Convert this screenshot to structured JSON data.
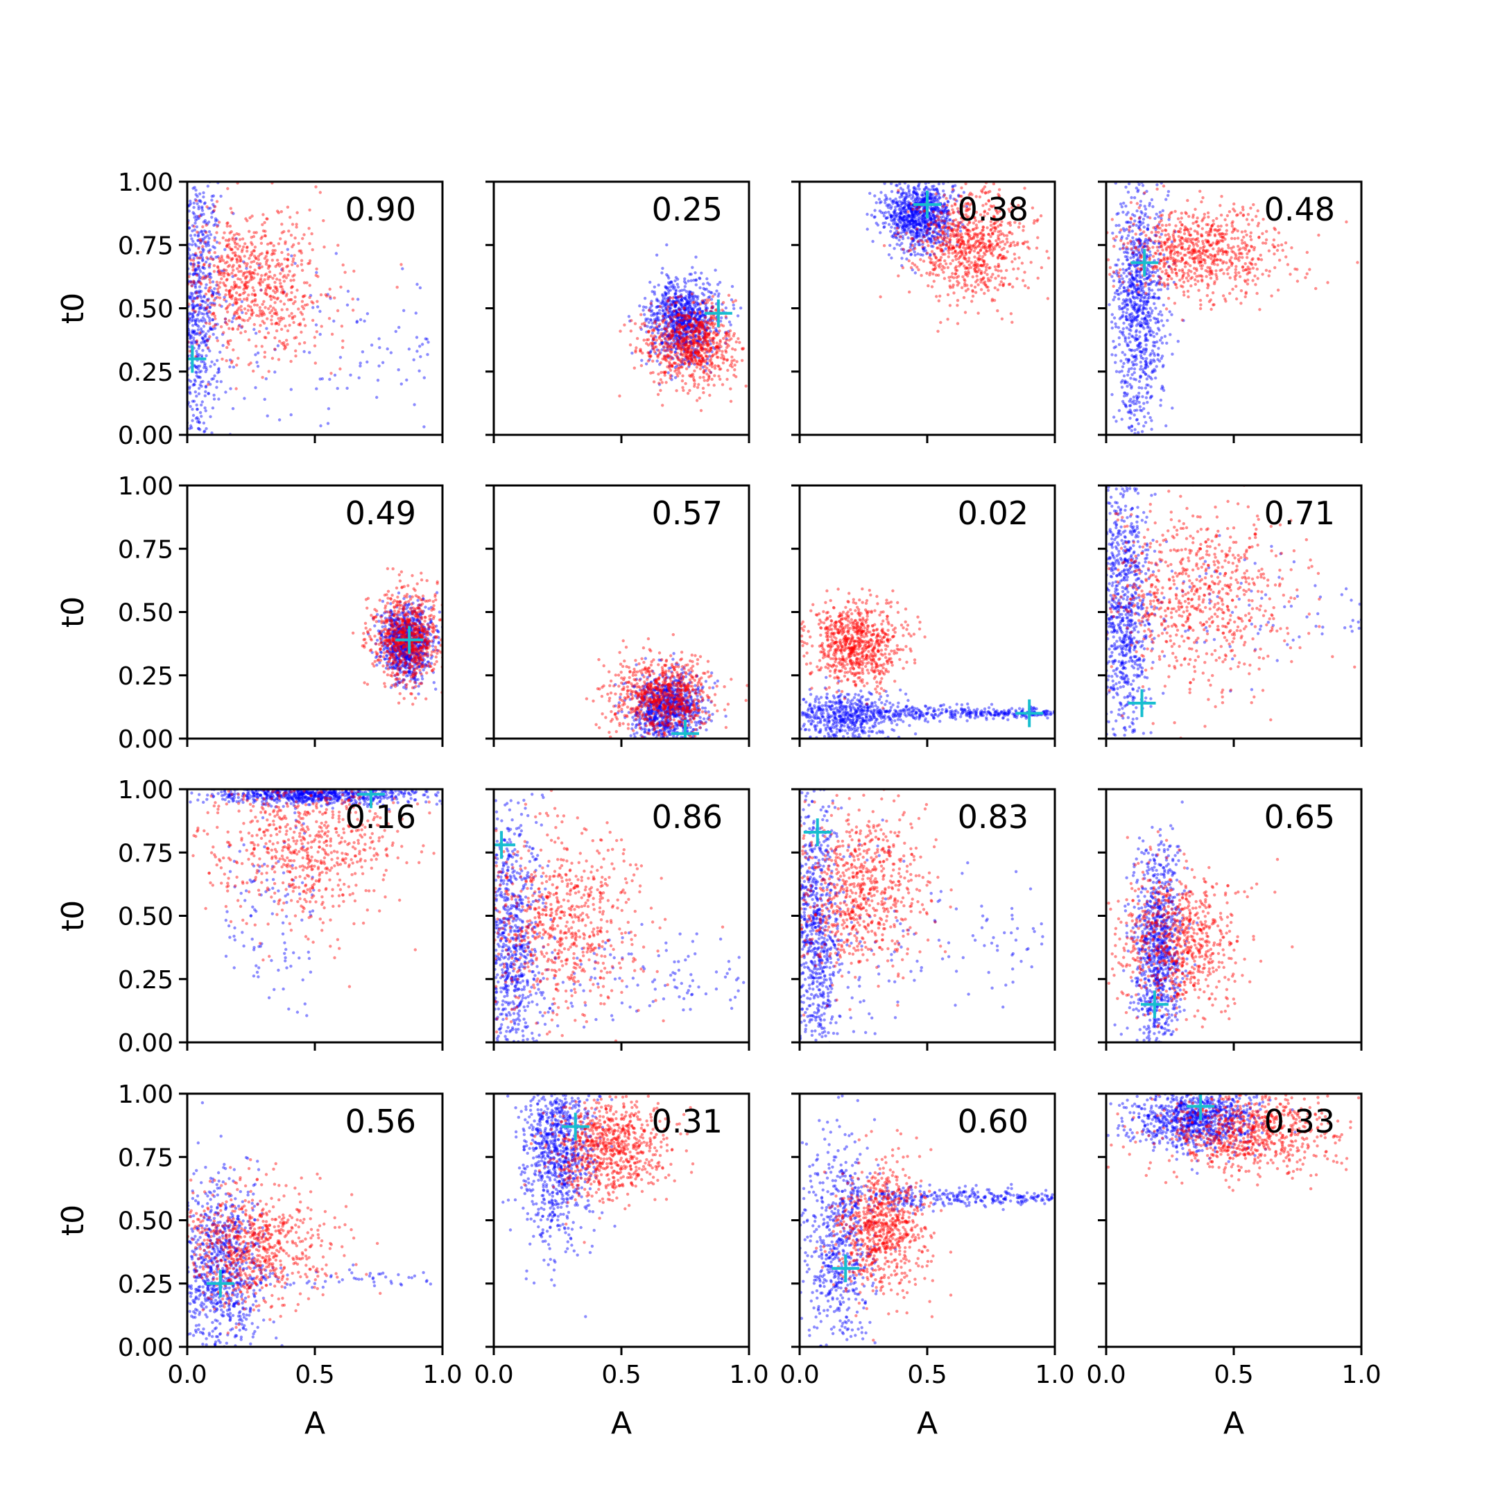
{
  "figure": {
    "xlabel": "A",
    "ylabel": "t0",
    "xlim": [
      0,
      1
    ],
    "ylim": [
      0,
      1
    ],
    "xticks": [
      "0.0",
      "0.5",
      "1.0"
    ],
    "yticks": [
      "0.00",
      "0.25",
      "0.50",
      "0.75",
      "1.00"
    ]
  },
  "colors": {
    "blue_series": "#0000ff",
    "red_series": "#ff0000",
    "true_marker": "#17becf",
    "axes": "#000000",
    "background": "#ffffff"
  },
  "chart_data": [
    {
      "type": "scatter",
      "row": 1,
      "col": 1,
      "label": "0.90",
      "xlabel": "",
      "ylabel": "t0",
      "xlim": [
        0,
        1
      ],
      "ylim": [
        0,
        1
      ],
      "marker": {
        "x": 0.02,
        "y": 0.3
      },
      "series": [
        {
          "color": "blue",
          "center": [
            0.03,
            0.5
          ],
          "spread": [
            0.05,
            0.28
          ],
          "tail": {
            "x_end": 0.98,
            "y": 0.35,
            "spread": 0.28,
            "fraction": 0.15
          }
        },
        {
          "color": "red",
          "center": [
            0.25,
            0.6
          ],
          "spread": [
            0.15,
            0.15
          ]
        }
      ]
    },
    {
      "type": "scatter",
      "row": 1,
      "col": 2,
      "label": "0.25",
      "xlabel": "",
      "ylabel": "",
      "xlim": [
        0,
        1
      ],
      "ylim": [
        0,
        1
      ],
      "marker": {
        "x": 0.88,
        "y": 0.48
      },
      "series": [
        {
          "color": "blue",
          "center": [
            0.74,
            0.45
          ],
          "spread": [
            0.07,
            0.08
          ]
        },
        {
          "color": "red",
          "center": [
            0.77,
            0.36
          ],
          "spread": [
            0.09,
            0.08
          ]
        }
      ]
    },
    {
      "type": "scatter",
      "row": 1,
      "col": 3,
      "label": "0.38",
      "xlabel": "",
      "ylabel": "",
      "xlim": [
        0,
        1
      ],
      "ylim": [
        0,
        1
      ],
      "marker": {
        "x": 0.5,
        "y": 0.91
      },
      "series": [
        {
          "color": "blue",
          "center": [
            0.47,
            0.87
          ],
          "spread": [
            0.07,
            0.07
          ]
        },
        {
          "color": "red",
          "center": [
            0.67,
            0.75
          ],
          "spread": [
            0.11,
            0.11
          ]
        }
      ]
    },
    {
      "type": "scatter",
      "row": 1,
      "col": 4,
      "label": "0.48",
      "xlabel": "",
      "ylabel": "",
      "xlim": [
        0,
        1
      ],
      "ylim": [
        0,
        1
      ],
      "marker": {
        "x": 0.15,
        "y": 0.68
      },
      "series": [
        {
          "color": "blue",
          "center": [
            0.13,
            0.5
          ],
          "spread": [
            0.05,
            0.25
          ]
        },
        {
          "color": "red",
          "center": [
            0.38,
            0.73
          ],
          "spread": [
            0.16,
            0.09
          ]
        }
      ]
    },
    {
      "type": "scatter",
      "row": 2,
      "col": 1,
      "label": "0.49",
      "xlabel": "",
      "ylabel": "t0",
      "xlim": [
        0,
        1
      ],
      "ylim": [
        0,
        1
      ],
      "marker": {
        "x": 0.87,
        "y": 0.39
      },
      "series": [
        {
          "color": "blue",
          "center": [
            0.86,
            0.38
          ],
          "spread": [
            0.05,
            0.07
          ]
        },
        {
          "color": "red",
          "center": [
            0.86,
            0.4
          ],
          "spread": [
            0.07,
            0.09
          ]
        }
      ]
    },
    {
      "type": "scatter",
      "row": 2,
      "col": 2,
      "label": "0.57",
      "xlabel": "",
      "ylabel": "",
      "xlim": [
        0,
        1
      ],
      "ylim": [
        0,
        1
      ],
      "marker": {
        "x": 0.75,
        "y": 0.02
      },
      "series": [
        {
          "color": "blue",
          "center": [
            0.68,
            0.12
          ],
          "spread": [
            0.07,
            0.07
          ]
        },
        {
          "color": "red",
          "center": [
            0.65,
            0.16
          ],
          "spread": [
            0.1,
            0.08
          ]
        }
      ]
    },
    {
      "type": "scatter",
      "row": 2,
      "col": 3,
      "label": "0.02",
      "xlabel": "",
      "ylabel": "",
      "xlim": [
        0,
        1
      ],
      "ylim": [
        0,
        1
      ],
      "marker": {
        "x": 0.9,
        "y": 0.1
      },
      "series": [
        {
          "color": "blue",
          "center": [
            0.15,
            0.08
          ],
          "spread": [
            0.12,
            0.05
          ],
          "tail": {
            "x_end": 1.0,
            "y": 0.1,
            "spread": 0.02,
            "fraction": 0.45
          }
        },
        {
          "color": "red",
          "center": [
            0.22,
            0.37
          ],
          "spread": [
            0.09,
            0.08
          ]
        }
      ]
    },
    {
      "type": "scatter",
      "row": 2,
      "col": 4,
      "label": "0.71",
      "xlabel": "",
      "ylabel": "",
      "xlim": [
        0,
        1
      ],
      "ylim": [
        0,
        1
      ],
      "marker": {
        "x": 0.14,
        "y": 0.14
      },
      "series": [
        {
          "color": "blue",
          "center": [
            0.07,
            0.5
          ],
          "spread": [
            0.05,
            0.28
          ],
          "tail": {
            "x_end": 1.0,
            "y": 0.5,
            "spread": 0.2,
            "fraction": 0.12
          }
        },
        {
          "color": "red",
          "center": [
            0.35,
            0.55
          ],
          "spread": [
            0.2,
            0.18
          ]
        }
      ]
    },
    {
      "type": "scatter",
      "row": 3,
      "col": 1,
      "label": "0.16",
      "xlabel": "",
      "ylabel": "t0",
      "xlim": [
        0,
        1
      ],
      "ylim": [
        0,
        1
      ],
      "marker": {
        "x": 0.72,
        "y": 0.98
      },
      "series": [
        {
          "color": "blue",
          "center": [
            0.5,
            0.98
          ],
          "spread": [
            0.22,
            0.02
          ],
          "tail": {
            "x_end": 0.15,
            "y": 0.5,
            "spread": 0.3,
            "fraction": 0.12
          }
        },
        {
          "color": "red",
          "center": [
            0.45,
            0.8
          ],
          "spread": [
            0.18,
            0.16
          ]
        }
      ]
    },
    {
      "type": "scatter",
      "row": 3,
      "col": 2,
      "label": "0.86",
      "xlabel": "",
      "ylabel": "",
      "xlim": [
        0,
        1
      ],
      "ylim": [
        0,
        1
      ],
      "marker": {
        "x": 0.03,
        "y": 0.78
      },
      "series": [
        {
          "color": "blue",
          "center": [
            0.07,
            0.4
          ],
          "spread": [
            0.06,
            0.28
          ],
          "tail": {
            "x_end": 0.98,
            "y": 0.25,
            "spread": 0.15,
            "fraction": 0.15
          }
        },
        {
          "color": "red",
          "center": [
            0.25,
            0.48
          ],
          "spread": [
            0.17,
            0.18
          ]
        }
      ]
    },
    {
      "type": "scatter",
      "row": 3,
      "col": 3,
      "label": "0.83",
      "xlabel": "",
      "ylabel": "",
      "xlim": [
        0,
        1
      ],
      "ylim": [
        0,
        1
      ],
      "marker": {
        "x": 0.07,
        "y": 0.83
      },
      "series": [
        {
          "color": "blue",
          "center": [
            0.06,
            0.45
          ],
          "spread": [
            0.05,
            0.28
          ],
          "tail": {
            "x_end": 0.98,
            "y": 0.4,
            "spread": 0.25,
            "fraction": 0.15
          }
        },
        {
          "color": "red",
          "center": [
            0.22,
            0.6
          ],
          "spread": [
            0.14,
            0.16
          ]
        }
      ]
    },
    {
      "type": "scatter",
      "row": 3,
      "col": 4,
      "label": "0.65",
      "xlabel": "",
      "ylabel": "",
      "xlim": [
        0,
        1
      ],
      "ylim": [
        0,
        1
      ],
      "marker": {
        "x": 0.19,
        "y": 0.15
      },
      "series": [
        {
          "color": "blue",
          "center": [
            0.2,
            0.35
          ],
          "spread": [
            0.05,
            0.2
          ]
        },
        {
          "color": "red",
          "center": [
            0.28,
            0.4
          ],
          "spread": [
            0.12,
            0.14
          ]
        }
      ]
    },
    {
      "type": "scatter",
      "row": 4,
      "col": 1,
      "label": "0.56",
      "xlabel": "A",
      "ylabel": "t0",
      "xlim": [
        0,
        1
      ],
      "ylim": [
        0,
        1
      ],
      "marker": {
        "x": 0.13,
        "y": 0.25
      },
      "series": [
        {
          "color": "blue",
          "center": [
            0.13,
            0.3
          ],
          "spread": [
            0.08,
            0.18
          ],
          "tail": {
            "x_end": 0.97,
            "y": 0.27,
            "spread": 0.03,
            "fraction": 0.08
          }
        },
        {
          "color": "red",
          "center": [
            0.25,
            0.4
          ],
          "spread": [
            0.15,
            0.12
          ]
        }
      ]
    },
    {
      "type": "scatter",
      "row": 4,
      "col": 2,
      "label": "0.31",
      "xlabel": "A",
      "ylabel": "",
      "xlim": [
        0,
        1
      ],
      "ylim": [
        0,
        1
      ],
      "marker": {
        "x": 0.32,
        "y": 0.87
      },
      "series": [
        {
          "color": "blue",
          "center": [
            0.25,
            0.78
          ],
          "spread": [
            0.07,
            0.17
          ]
        },
        {
          "color": "red",
          "center": [
            0.45,
            0.78
          ],
          "spread": [
            0.11,
            0.1
          ]
        }
      ]
    },
    {
      "type": "scatter",
      "row": 4,
      "col": 3,
      "label": "0.60",
      "xlabel": "A",
      "ylabel": "",
      "xlim": [
        0,
        1
      ],
      "ylim": [
        0,
        1
      ],
      "marker": {
        "x": 0.18,
        "y": 0.31
      },
      "series": [
        {
          "color": "blue",
          "center": [
            0.15,
            0.4
          ],
          "spread": [
            0.07,
            0.22
          ],
          "tail": {
            "x_end": 1.0,
            "y": 0.59,
            "spread": 0.03,
            "fraction": 0.35
          }
        },
        {
          "color": "red",
          "center": [
            0.32,
            0.46
          ],
          "spread": [
            0.09,
            0.13
          ]
        }
      ]
    },
    {
      "type": "scatter",
      "row": 4,
      "col": 4,
      "label": "0.33",
      "xlabel": "A",
      "ylabel": "",
      "xlim": [
        0,
        1
      ],
      "ylim": [
        0,
        1
      ],
      "marker": {
        "x": 0.37,
        "y": 0.95
      },
      "series": [
        {
          "color": "blue",
          "center": [
            0.35,
            0.9
          ],
          "spread": [
            0.12,
            0.06
          ]
        },
        {
          "color": "red",
          "center": [
            0.55,
            0.85
          ],
          "spread": [
            0.17,
            0.08
          ]
        }
      ]
    }
  ]
}
